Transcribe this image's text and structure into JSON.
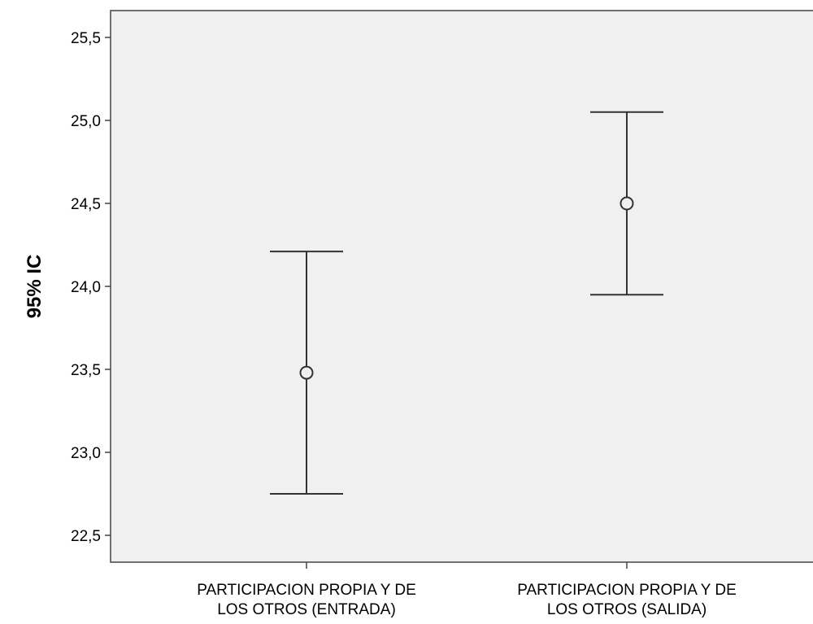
{
  "chart_data": {
    "type": "errorbar",
    "ylabel": "95% IC",
    "ylim": [
      22.35,
      25.7
    ],
    "yticks": [
      22.5,
      23.0,
      23.5,
      24.0,
      24.5,
      25.0,
      25.5
    ],
    "ytick_labels": [
      "22,5",
      "23,0",
      "23,5",
      "24,0",
      "24,5",
      "25,0",
      "25,5"
    ],
    "categories": [
      [
        "PARTICIPACION PROPIA Y DE",
        "LOS OTROS (ENTRADA)"
      ],
      [
        "PARTICIPACION PROPIA Y DE",
        "LOS OTROS (SALIDA)"
      ]
    ],
    "points": [
      {
        "mean": 23.48,
        "lower": 22.75,
        "upper": 24.21
      },
      {
        "mean": 24.5,
        "lower": 23.95,
        "upper": 25.05
      }
    ],
    "plot_background": "#f0f0f0",
    "grid": false
  }
}
